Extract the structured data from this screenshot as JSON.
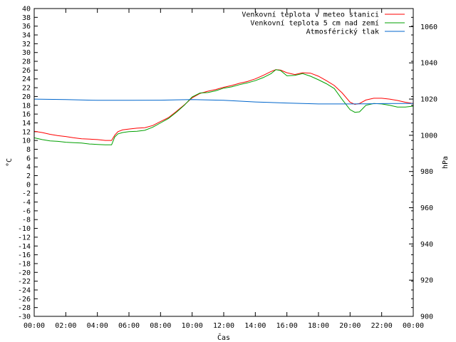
{
  "chart_data": {
    "type": "line",
    "xlabel": "Čas",
    "ylabel_left": "°C",
    "ylabel_right": "hPa",
    "x_range": [
      0,
      24
    ],
    "x_tick_labels": [
      "00:00",
      "02:00",
      "04:00",
      "06:00",
      "08:00",
      "10:00",
      "12:00",
      "14:00",
      "16:00",
      "18:00",
      "20:00",
      "22:00",
      "00:00"
    ],
    "y_left_range": [
      -30,
      40
    ],
    "y_left_ticks": [
      40,
      38,
      36,
      34,
      32,
      30,
      28,
      26,
      24,
      22,
      20,
      18,
      16,
      14,
      12,
      10,
      8,
      6,
      4,
      2,
      0,
      -2,
      -4,
      -6,
      -8,
      -10,
      -12,
      -14,
      -16,
      -18,
      -20,
      -22,
      -24,
      -26,
      -28,
      -30
    ],
    "y_right_range": [
      900,
      1070
    ],
    "y_right_ticks": [
      1060,
      1040,
      1020,
      1000,
      980,
      960,
      940,
      920,
      900
    ],
    "grid": false,
    "legend_position": "top-right",
    "series": [
      {
        "name": "Venkovní teplota v meteo stanici",
        "color": "#ff0000",
        "axis": "left",
        "x": [
          0,
          0.5,
          1,
          1.5,
          2,
          2.5,
          3,
          3.5,
          4,
          4.5,
          4.9,
          5.1,
          5.3,
          5.6,
          6,
          6.5,
          7,
          7.5,
          8,
          8.5,
          9,
          9.5,
          10,
          10.5,
          11,
          11.5,
          12,
          12.5,
          13,
          13.5,
          14,
          14.5,
          15,
          15.3,
          15.6,
          16,
          16.5,
          17,
          17.5,
          18,
          18.5,
          19,
          19.5,
          20,
          20.3,
          20.6,
          21,
          21.5,
          22,
          22.5,
          23,
          23.5,
          24
        ],
        "y": [
          12.1,
          11.8,
          11.4,
          11.1,
          10.9,
          10.6,
          10.4,
          10.3,
          10.2,
          10.0,
          10.0,
          11.2,
          12.0,
          12.4,
          12.6,
          12.8,
          12.9,
          13.4,
          14.3,
          15.2,
          16.6,
          18.1,
          19.7,
          20.7,
          21.2,
          21.6,
          22.1,
          22.5,
          23.0,
          23.4,
          24.0,
          24.8,
          25.7,
          26.1,
          26.0,
          25.4,
          25.0,
          25.4,
          25.3,
          24.6,
          23.6,
          22.5,
          20.8,
          18.7,
          18.2,
          18.4,
          19.2,
          19.6,
          19.6,
          19.4,
          19.1,
          18.7,
          18.4
        ]
      },
      {
        "name": "Venkovní teplota 5 cm nad zemí",
        "color": "#00a000",
        "axis": "left",
        "x": [
          0,
          0.5,
          1,
          1.5,
          2,
          2.5,
          3,
          3.5,
          4,
          4.5,
          4.9,
          5.1,
          5.3,
          5.6,
          6,
          6.5,
          7,
          7.5,
          8,
          8.5,
          9,
          9.5,
          10,
          10.5,
          11,
          11.5,
          12,
          12.5,
          13,
          13.5,
          14,
          14.5,
          15,
          15.3,
          15.6,
          16,
          16.5,
          17,
          17.5,
          18,
          18.5,
          19,
          19.5,
          20,
          20.3,
          20.6,
          21,
          21.5,
          22,
          22.5,
          23,
          23.5,
          24
        ],
        "y": [
          10.6,
          10.2,
          9.9,
          9.8,
          9.6,
          9.5,
          9.4,
          9.2,
          9.1,
          9.0,
          9.0,
          10.8,
          11.5,
          11.8,
          12.0,
          12.1,
          12.3,
          13.0,
          14.0,
          15.0,
          16.4,
          18.0,
          19.9,
          20.8,
          20.9,
          21.3,
          21.9,
          22.2,
          22.7,
          23.1,
          23.6,
          24.3,
          25.2,
          26.1,
          25.9,
          24.7,
          24.8,
          25.2,
          24.6,
          23.8,
          22.9,
          21.8,
          19.3,
          17.0,
          16.4,
          16.5,
          18.0,
          18.4,
          18.3,
          18.0,
          17.6,
          17.6,
          17.8
        ]
      },
      {
        "name": "Atmosférický tlak",
        "color": "#0066cc",
        "axis": "right",
        "x": [
          0,
          2,
          4,
          6,
          8,
          9,
          10,
          12,
          14,
          16,
          18,
          20,
          21,
          22,
          23,
          24
        ],
        "y": [
          1020.0,
          1019.7,
          1019.3,
          1019.3,
          1019.4,
          1019.6,
          1019.7,
          1019.3,
          1018.4,
          1017.8,
          1017.3,
          1017.3,
          1017.4,
          1017.5,
          1017.6,
          1017.6
        ]
      }
    ]
  }
}
